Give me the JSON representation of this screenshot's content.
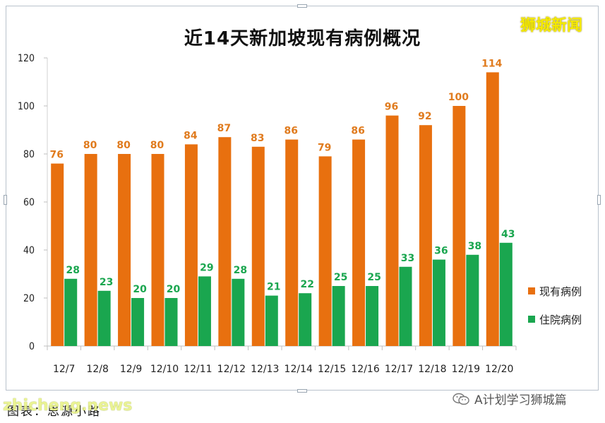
{
  "chart_data": {
    "type": "bar",
    "title": "近14天新加坡现有病例概况",
    "categories": [
      "12/7",
      "12/8",
      "12/9",
      "12/10",
      "12/11",
      "12/12",
      "12/13",
      "12/14",
      "12/15",
      "12/16",
      "12/17",
      "12/18",
      "12/19",
      "12/20"
    ],
    "series": [
      {
        "name": "现有病例",
        "color": "#e8700f",
        "label_color": "#e07b1e",
        "values": [
          76,
          80,
          80,
          80,
          84,
          87,
          83,
          86,
          79,
          86,
          96,
          92,
          100,
          114
        ]
      },
      {
        "name": "住院病例",
        "color": "#1aa64f",
        "label_color": "#1aa64f",
        "values": [
          28,
          23,
          20,
          20,
          29,
          28,
          21,
          22,
          25,
          25,
          33,
          36,
          38,
          43
        ]
      }
    ],
    "ylim": [
      0,
      120
    ],
    "yticks": [
      0,
      20,
      40,
      60,
      80,
      100,
      120
    ],
    "grid": false,
    "legend_position": "right"
  },
  "branding": {
    "top_right": "狮城新闻",
    "watermark": "zhicheng.news",
    "wechat": "A计划学习狮城篇"
  },
  "source_label": "图表：思源小路"
}
